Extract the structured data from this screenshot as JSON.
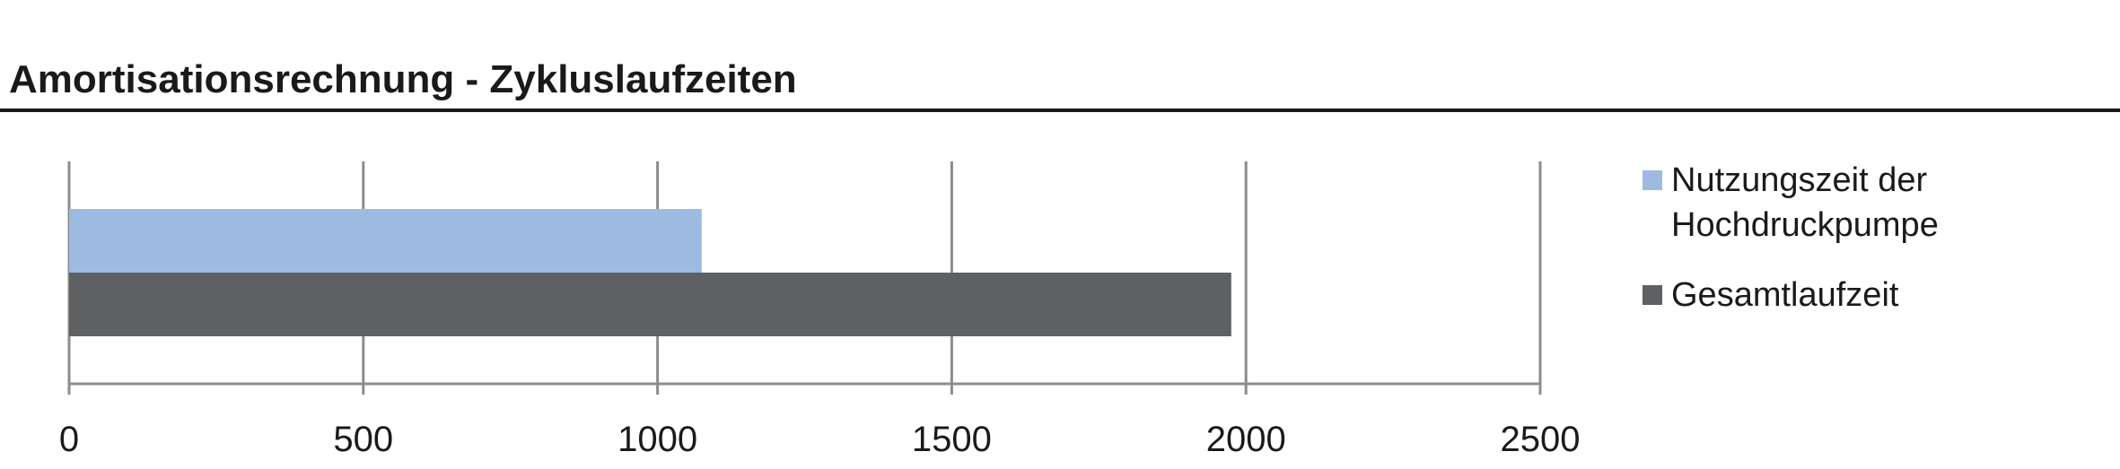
{
  "chart_data": {
    "type": "bar",
    "orientation": "horizontal",
    "title": "Amortisationsrechnung - Zykluslaufzeiten",
    "categories": [
      ""
    ],
    "series": [
      {
        "name": "Nutzungszeit der Hochdruckpumpe",
        "values": [
          1075
        ],
        "color": "#9dbbe0"
      },
      {
        "name": "Gesamtlaufzeit",
        "values": [
          1975
        ],
        "color": "#5f6062"
      }
    ],
    "xlim": [
      0,
      2500
    ],
    "xticks": [
      "0",
      "500",
      "1000",
      "1500",
      "2000",
      "2500"
    ],
    "xlabel": "",
    "ylabel": "",
    "grid": true,
    "legend_position": "right"
  }
}
